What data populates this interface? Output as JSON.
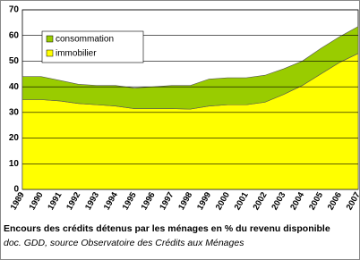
{
  "chart_data": {
    "type": "stacked-area",
    "caption": "Encours des crédits détenus par les ménages en % du revenu disponible",
    "source": "doc. GDD, source Observatoire des Crédits aux Ménages",
    "categories": [
      "1989",
      "1990",
      "1991",
      "1992",
      "1993",
      "1994",
      "1995",
      "1996",
      "1997",
      "1998",
      "1999",
      "2000",
      "2001",
      "2002",
      "2003",
      "2004",
      "2005",
      "2006",
      "2007"
    ],
    "series": [
      {
        "name": "immobilier",
        "color": "#ffff00",
        "values": [
          35,
          35,
          34.5,
          33.5,
          33,
          32.5,
          31.5,
          31.5,
          31.5,
          31.3,
          32.5,
          33,
          33,
          34,
          37,
          40.5,
          45,
          49.5,
          53
        ]
      },
      {
        "name": "consommation",
        "color": "#99cc00",
        "values": [
          9,
          9,
          8,
          7.5,
          7.5,
          8,
          8,
          8.5,
          9,
          9.2,
          10.5,
          10.5,
          10.5,
          10.5,
          10,
          9.5,
          10,
          10,
          10.5
        ]
      }
    ],
    "ylim": [
      0,
      70
    ],
    "yticks": [
      0,
      10,
      20,
      30,
      40,
      50,
      60,
      70
    ],
    "grid": true,
    "legend": "upper left"
  }
}
